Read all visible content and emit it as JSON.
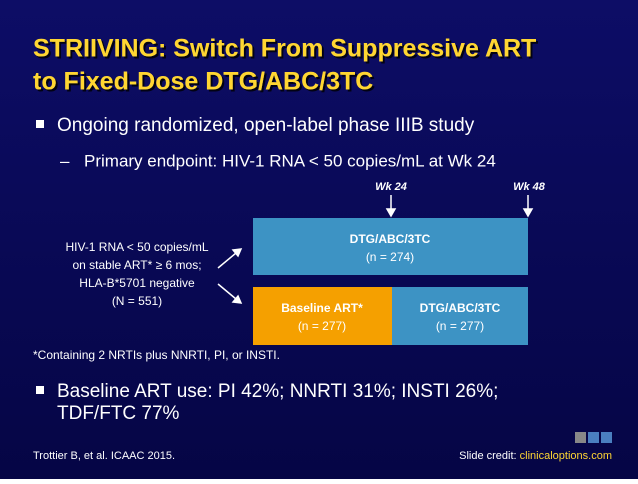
{
  "title": [
    "STRIIVING: Switch From Suppressive ART",
    "to Fixed-Dose DTG/ABC/3TC"
  ],
  "bullets": [
    {
      "text": "Ongoing randomized, open-label phase IIIB study",
      "sub": [
        "Primary endpoint: HIV-1 RNA < 50 copies/mL at Wk 24"
      ]
    }
  ],
  "diagram": {
    "timepoints": [
      "Wk 24",
      "Wk 48"
    ],
    "population": [
      "HIV-1 RNA < 50 copies/mL",
      "on stable ART* ≥ 6 mos;",
      "HLA-B*5701 negative",
      "(N = 551)"
    ],
    "arms": [
      {
        "name": "DTG/ABC/3TC",
        "n": "(n = 274)"
      },
      {
        "name": "Baseline ART*",
        "n": "(n = 277)"
      },
      {
        "name": "DTG/ABC/3TC",
        "n": "(n = 277)"
      }
    ]
  },
  "footnote": "*Containing 2 NRTIs plus NNRTI, PI, or INSTI.",
  "bullets2": [
    {
      "lines": [
        "Baseline ART use: PI 42%; NNRTI 31%; INSTI 26%;",
        "TDF/FTC 77%"
      ]
    }
  ],
  "footer": {
    "citation": "Trottier B, et al. ICAAC 2015.",
    "credit_label": "Slide credit:",
    "credit_link": "clinicaloptions.com"
  }
}
